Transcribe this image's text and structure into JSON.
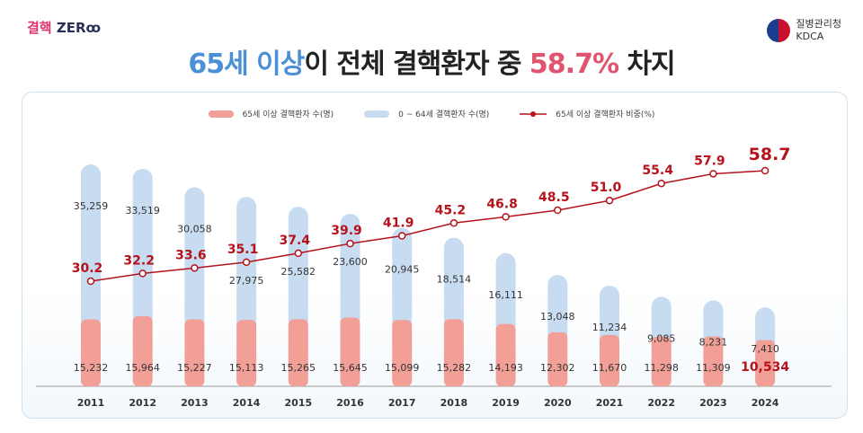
{
  "header": {
    "logo_text_kr": "결핵",
    "logo_text_en": "ZER",
    "agency_kr": "질병관리청",
    "agency_en": "KDCA"
  },
  "title": {
    "part1": "65세 이상",
    "part2": "이 전체 결핵환자 중 ",
    "part3": "58.7%",
    "part4": " 차지"
  },
  "colors": {
    "elderly": "#f2a097",
    "young": "#c7dcf1",
    "line": "#b5121b",
    "title_blue": "#4a90d6",
    "title_red": "#e0546f"
  },
  "chart_data": {
    "type": "bar",
    "stacked": true,
    "categories": [
      "2011",
      "2012",
      "2013",
      "2014",
      "2015",
      "2016",
      "2017",
      "2018",
      "2019",
      "2020",
      "2021",
      "2022",
      "2023",
      "2024"
    ],
    "series": [
      {
        "name": "65세 이상 결핵환자 수(명)",
        "type": "bar",
        "values": [
          15232,
          15964,
          15227,
          15113,
          15265,
          15645,
          15099,
          15282,
          14193,
          12302,
          11670,
          11298,
          11309,
          10534
        ],
        "labels": [
          "15,232",
          "15,964",
          "15,227",
          "15,113",
          "15,265",
          "15,645",
          "15,099",
          "15,282",
          "14,193",
          "12,302",
          "11,670",
          "11,298",
          "11,309",
          "10,534"
        ]
      },
      {
        "name": "0 ~ 64세 결핵환자 수(명)",
        "type": "bar",
        "values": [
          35259,
          33519,
          30058,
          27975,
          25582,
          23600,
          20945,
          18514,
          16111,
          13048,
          11234,
          9085,
          8231,
          7410
        ],
        "labels": [
          "35,259",
          "33,519",
          "30,058",
          "27,975",
          "25,582",
          "23,600",
          "20,945",
          "18,514",
          "16,111",
          "13,048",
          "11,234",
          "9,085",
          "8,231",
          "7,410"
        ]
      },
      {
        "name": "65세 이상 결핵환자 비중(%)",
        "type": "line",
        "values": [
          30.2,
          32.2,
          33.6,
          35.1,
          37.4,
          39.9,
          41.9,
          45.2,
          46.8,
          48.5,
          51.0,
          55.4,
          57.9,
          58.7
        ],
        "labels": [
          "30.2",
          "32.2",
          "33.6",
          "35.1",
          "37.4",
          "39.9",
          "41.9",
          "45.2",
          "46.8",
          "48.5",
          "51.0",
          "55.4",
          "57.9",
          "58.7"
        ]
      }
    ],
    "legend": "top"
  }
}
